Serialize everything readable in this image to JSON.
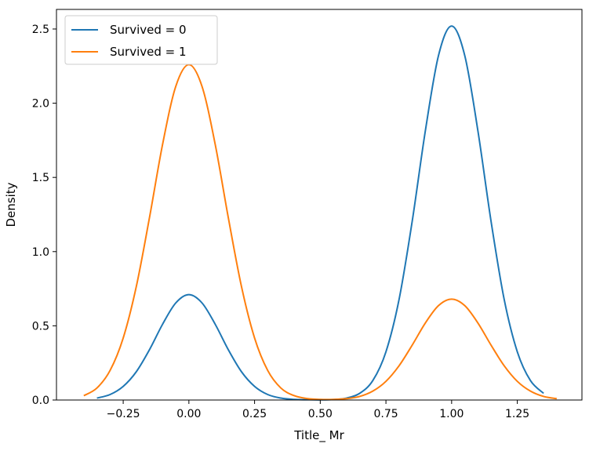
{
  "chart_data": {
    "type": "line",
    "title": "",
    "xlabel": "Title_ Mr",
    "ylabel": "Density",
    "xlim": [
      -0.504,
      1.496
    ],
    "ylim": [
      0,
      2.632
    ],
    "xticks": [
      -0.25,
      0.0,
      0.25,
      0.5,
      0.75,
      1.0,
      1.25
    ],
    "xtick_labels": [
      "−0.25",
      "0.00",
      "0.25",
      "0.50",
      "0.75",
      "1.00",
      "1.25"
    ],
    "yticks": [
      0,
      0.5,
      1.0,
      1.5,
      2.0,
      2.5
    ],
    "ytick_labels": [
      "0.0",
      "0.5",
      "1.0",
      "1.5",
      "2.0",
      "2.5"
    ],
    "grid": false,
    "legend_position": "top-left",
    "series": [
      {
        "name": "Survived = 0",
        "color": "#1f77b4",
        "x": [
          -0.35,
          -0.3,
          -0.25,
          -0.2,
          -0.15,
          -0.1,
          -0.05,
          0,
          0.05,
          0.1,
          0.15,
          0.2,
          0.25,
          0.3,
          0.35,
          0.4,
          0.45,
          0.5,
          0.55,
          0.6,
          0.65,
          0.7,
          0.75,
          0.8,
          0.85,
          0.9,
          0.95,
          1.0,
          1.05,
          1.1,
          1.15,
          1.2,
          1.25,
          1.3,
          1.35
        ],
        "y": [
          0.013,
          0.037,
          0.092,
          0.191,
          0.339,
          0.511,
          0.654,
          0.71,
          0.654,
          0.511,
          0.339,
          0.191,
          0.092,
          0.037,
          0.013,
          0.004,
          0.002,
          0.001,
          0.003,
          0.013,
          0.045,
          0.131,
          0.325,
          0.678,
          1.205,
          1.814,
          2.321,
          2.52,
          2.321,
          1.814,
          1.205,
          0.678,
          0.325,
          0.131,
          0.045
        ]
      },
      {
        "name": "Survived = 1",
        "color": "#ff7f0e",
        "x": [
          -0.4,
          -0.35,
          -0.3,
          -0.25,
          -0.2,
          -0.15,
          -0.1,
          -0.05,
          0,
          0.05,
          0.1,
          0.15,
          0.2,
          0.25,
          0.3,
          0.35,
          0.4,
          0.45,
          0.5,
          0.55,
          0.6,
          0.65,
          0.7,
          0.75,
          0.8,
          0.85,
          0.9,
          0.95,
          1.0,
          1.05,
          1.1,
          1.15,
          1.2,
          1.25,
          1.3,
          1.35,
          1.4
        ],
        "y": [
          0.029,
          0.081,
          0.199,
          0.418,
          0.766,
          1.229,
          1.724,
          2.113,
          2.26,
          2.113,
          1.724,
          1.229,
          0.766,
          0.418,
          0.199,
          0.081,
          0.03,
          0.01,
          0.004,
          0.004,
          0.009,
          0.024,
          0.06,
          0.126,
          0.231,
          0.37,
          0.519,
          0.636,
          0.68,
          0.636,
          0.519,
          0.37,
          0.231,
          0.126,
          0.06,
          0.024,
          0.009
        ]
      }
    ]
  }
}
